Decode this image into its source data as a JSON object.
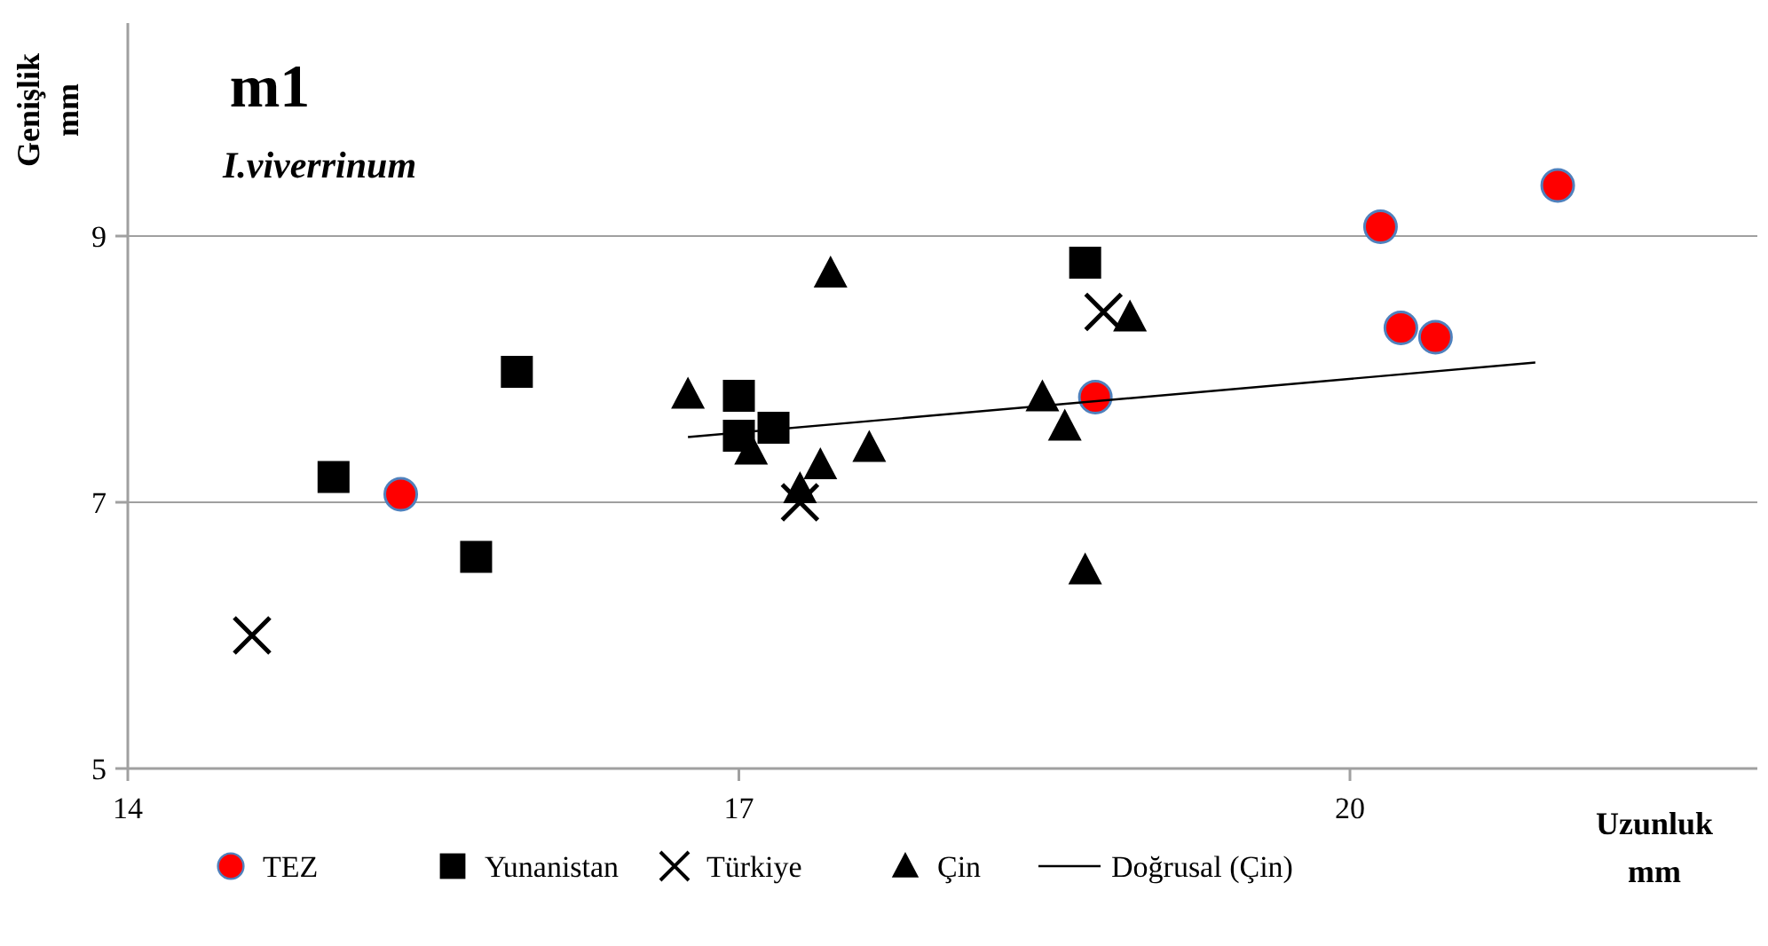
{
  "chart_data": {
    "type": "scatter",
    "title": "m1",
    "subtitle": "I.viverrinum",
    "xlabel": "Uzunluk mm",
    "ylabel": "Genişlik mm",
    "xlim": [
      14,
      22
    ],
    "xticks": [
      14,
      17,
      20
    ],
    "ylim": [
      5,
      10.6
    ],
    "yticks": [
      5,
      7,
      9
    ],
    "grid": "y",
    "legend": "bottom",
    "series": [
      {
        "name": "TEZ",
        "color": "#ff0000",
        "marker": "circle",
        "x": [
          15.34,
          18.75,
          20.15,
          20.25,
          20.42,
          21.02
        ],
        "values": [
          7.06,
          7.79,
          9.07,
          8.31,
          8.24,
          9.38
        ]
      },
      {
        "name": "Yunanistan",
        "color": "#000000",
        "marker": "square",
        "x": [
          15.01,
          15.71,
          15.91,
          17.0,
          17.0,
          17.17,
          18.7
        ],
        "values": [
          7.19,
          6.59,
          7.98,
          7.8,
          7.5,
          7.56,
          8.8
        ]
      },
      {
        "name": "Türkiye",
        "color": "#000000",
        "marker": "cross",
        "x": [
          14.61,
          17.3,
          18.79
        ],
        "values": [
          6.0,
          7.0,
          8.43
        ]
      },
      {
        "name": "Çin",
        "color": "#000000",
        "marker": "triangle",
        "x": [
          16.75,
          17.06,
          17.3,
          17.4,
          17.45,
          17.64,
          18.49,
          18.6,
          18.7,
          18.92
        ],
        "values": [
          7.81,
          7.39,
          7.1,
          7.28,
          8.72,
          7.41,
          7.79,
          7.57,
          6.49,
          8.39
        ]
      },
      {
        "name": "Doğrusal (Çin)",
        "type": "line",
        "color": "#000000",
        "marker": "none",
        "x": [
          16.75,
          20.91
        ],
        "values": [
          7.49,
          8.05
        ]
      }
    ]
  }
}
